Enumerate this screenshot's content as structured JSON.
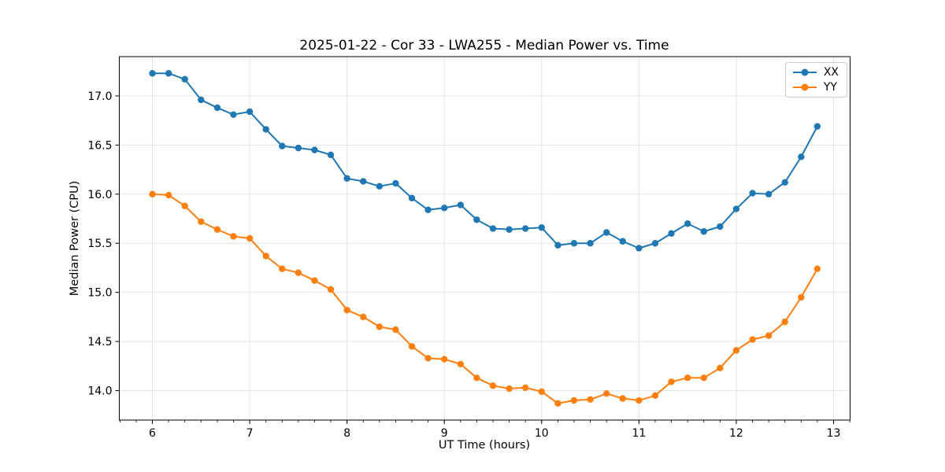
{
  "figure": {
    "title": "2025-01-22 - Cor 33 - LWA255 - Median Power vs. Time",
    "xlabel": "UT Time (hours)",
    "ylabel": "Median Power (CPU)"
  },
  "chart_data": {
    "type": "line",
    "title": "2025-01-22 - Cor 33 - LWA255 - Median Power vs. Time",
    "xlabel": "UT Time (hours)",
    "ylabel": "Median Power (CPU)",
    "xlim": [
      5.66,
      13.17
    ],
    "ylim": [
      13.7,
      17.4
    ],
    "xticks": [
      6,
      7,
      8,
      9,
      10,
      11,
      12,
      13
    ],
    "yticks": [
      14.0,
      14.5,
      15.0,
      15.5,
      16.0,
      16.5,
      17.0
    ],
    "minor_xtick_step": 0.166667,
    "grid": true,
    "legend_position": "upper right",
    "marker": "circle",
    "colors": {
      "grid": "#e3e3e3",
      "spine": "#000000",
      "text": "#000000"
    },
    "x": [
      6.0,
      6.167,
      6.333,
      6.5,
      6.667,
      6.833,
      7.0,
      7.167,
      7.333,
      7.5,
      7.667,
      7.833,
      8.0,
      8.167,
      8.333,
      8.5,
      8.667,
      8.833,
      9.0,
      9.167,
      9.333,
      9.5,
      9.667,
      9.833,
      10.0,
      10.167,
      10.333,
      10.5,
      10.667,
      10.833,
      11.0,
      11.167,
      11.333,
      11.5,
      11.667,
      11.833,
      12.0,
      12.167,
      12.333,
      12.5,
      12.667,
      12.833
    ],
    "series": [
      {
        "name": "XX",
        "color": "#1f77b4",
        "values": [
          17.23,
          17.23,
          17.17,
          16.96,
          16.88,
          16.81,
          16.84,
          16.66,
          16.49,
          16.47,
          16.45,
          16.4,
          16.16,
          16.13,
          16.08,
          16.11,
          15.96,
          15.84,
          15.86,
          15.89,
          15.74,
          15.65,
          15.64,
          15.65,
          15.66,
          15.48,
          15.5,
          15.5,
          15.61,
          15.52,
          15.45,
          15.5,
          15.6,
          15.7,
          15.62,
          15.67,
          15.85,
          16.01,
          16.0,
          16.12,
          16.38,
          16.69
        ]
      },
      {
        "name": "YY",
        "color": "#ff7f0e",
        "values": [
          16.0,
          15.99,
          15.88,
          15.72,
          15.64,
          15.57,
          15.55,
          15.37,
          15.24,
          15.2,
          15.12,
          15.03,
          14.82,
          14.75,
          14.65,
          14.62,
          14.45,
          14.33,
          14.32,
          14.27,
          14.13,
          14.05,
          14.02,
          14.03,
          13.99,
          13.87,
          13.9,
          13.91,
          13.97,
          13.92,
          13.9,
          13.95,
          14.09,
          14.13,
          14.13,
          14.23,
          14.41,
          14.52,
          14.56,
          14.7,
          14.95,
          15.24
        ]
      }
    ]
  }
}
